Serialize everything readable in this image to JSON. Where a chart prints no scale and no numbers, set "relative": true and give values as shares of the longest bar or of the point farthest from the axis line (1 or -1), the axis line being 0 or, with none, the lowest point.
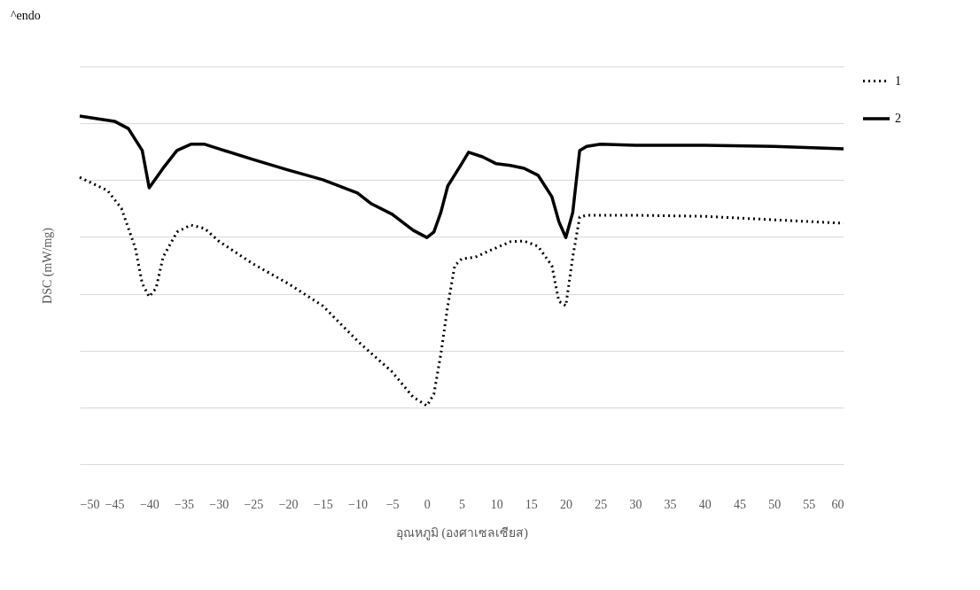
{
  "chart_data": {
    "type": "line",
    "xlabel": "อุณหภูมิ (องศาเซลเซียส)",
    "ylabel": "DSC (mW/mg)",
    "annotations": [
      "^endo"
    ],
    "relative": true,
    "grid": "y",
    "legend": "right",
    "marker": "none",
    "xlim": [
      -50,
      60
    ],
    "xticks": [
      -50,
      -45,
      -40,
      -35,
      -30,
      -25,
      -20,
      -15,
      -10,
      -5,
      0,
      5,
      10,
      15,
      20,
      25,
      30,
      35,
      40,
      45,
      50,
      55,
      60
    ],
    "series": [
      {
        "name": "1",
        "color": "#000000",
        "line_style": "dotted",
        "x": [
          -50,
          -46,
          -44,
          -42,
          -41,
          -40,
          -39,
          -38,
          -36,
          -34,
          -32,
          -30,
          -25,
          -20,
          -15,
          -10,
          -5,
          -2,
          0,
          1,
          2,
          3,
          4,
          5,
          7,
          9,
          12,
          14,
          16,
          18,
          19,
          20,
          21,
          22,
          23,
          30,
          40,
          50,
          60
        ],
        "values": [
          0.824,
          0.786,
          0.735,
          0.621,
          0.519,
          0.481,
          0.506,
          0.595,
          0.667,
          0.687,
          0.677,
          0.641,
          0.575,
          0.519,
          0.455,
          0.354,
          0.265,
          0.193,
          0.168,
          0.201,
          0.316,
          0.455,
          0.57,
          0.59,
          0.595,
          0.613,
          0.639,
          0.641,
          0.626,
          0.57,
          0.468,
          0.455,
          0.595,
          0.71,
          0.715,
          0.715,
          0.712,
          0.702,
          0.692
        ]
      },
      {
        "name": "2",
        "color": "#000000",
        "line_style": "solid",
        "x": [
          -50,
          -45,
          -43,
          -41,
          -40,
          -38,
          -36,
          -34,
          -32,
          -30,
          -25,
          -20,
          -15,
          -10,
          -8,
          -5,
          -2,
          0,
          1,
          2,
          3,
          5,
          6,
          8,
          10,
          12,
          14,
          16,
          18,
          19,
          20,
          21,
          22,
          23,
          25,
          30,
          40,
          50,
          60
        ],
        "values": [
          1.0,
          0.985,
          0.964,
          0.901,
          0.794,
          0.85,
          0.901,
          0.919,
          0.919,
          0.906,
          0.875,
          0.845,
          0.817,
          0.779,
          0.748,
          0.718,
          0.672,
          0.651,
          0.667,
          0.723,
          0.799,
          0.863,
          0.896,
          0.883,
          0.863,
          0.858,
          0.85,
          0.83,
          0.768,
          0.697,
          0.651,
          0.723,
          0.901,
          0.913,
          0.919,
          0.916,
          0.916,
          0.913,
          0.906
        ]
      }
    ]
  }
}
